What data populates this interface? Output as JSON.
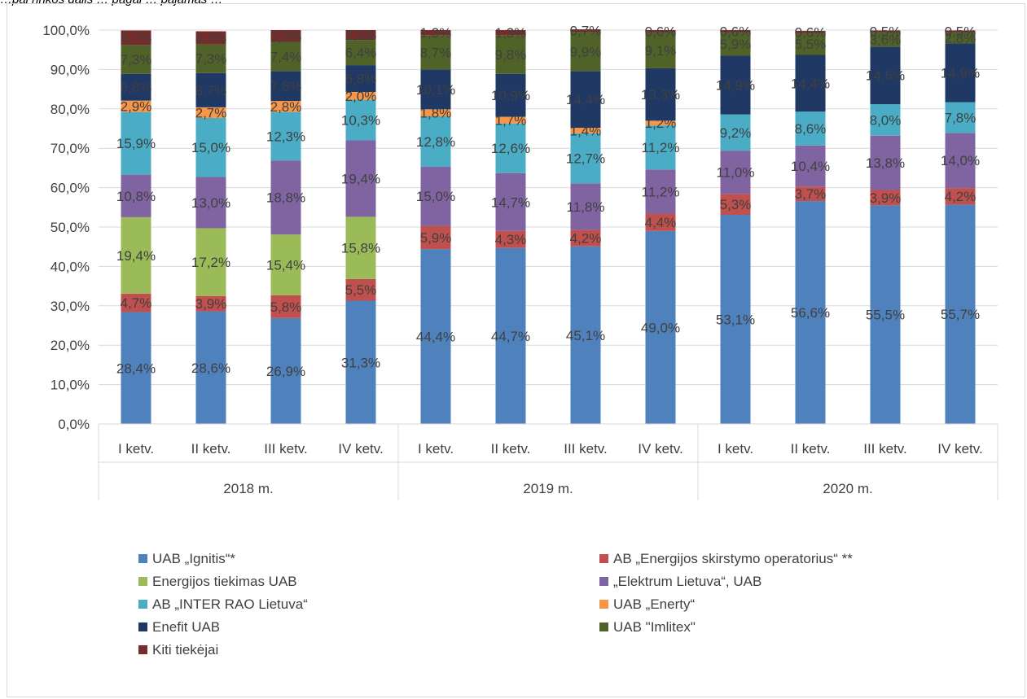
{
  "caption": "…pal rinkos dalis … pagal … pajamas …",
  "chart_data": {
    "type": "bar",
    "stacked": true,
    "ylim": [
      0,
      100
    ],
    "ytick_labels": [
      "0,0%",
      "10,0%",
      "20,0%",
      "30,0%",
      "40,0%",
      "50,0%",
      "60,0%",
      "70,0%",
      "80,0%",
      "90,0%",
      "100,0%"
    ],
    "categories": [
      "I ketv.",
      "II ketv.",
      "III ketv.",
      "IV ketv.",
      "I ketv.",
      "II ketv.",
      "III ketv.",
      "IV ketv.",
      "I ketv.",
      "II ketv.",
      "III ketv.",
      "IV ketv."
    ],
    "groups": [
      {
        "label": "2018 m.",
        "count": 4
      },
      {
        "label": "2019 m.",
        "count": 4
      },
      {
        "label": "2020 m.",
        "count": 4
      }
    ],
    "grid": true,
    "legend_position": "bottom",
    "series": [
      {
        "name": "UAB „Ignitis“*",
        "color": "#4f81bd",
        "values": [
          28.4,
          28.6,
          26.9,
          31.3,
          44.4,
          44.7,
          45.1,
          49.0,
          53.1,
          56.6,
          55.5,
          55.7
        ],
        "labels": [
          "28,4%",
          "28,6%",
          "26,9%",
          "31,3%",
          "44,4%",
          "44,7%",
          "45,1%",
          "49,0%",
          "53,1%",
          "56,6%",
          "55,5%",
          "55,7%"
        ]
      },
      {
        "name": "AB „Energijos skirstymo operatorius“ **",
        "color": "#c0504d",
        "values": [
          4.7,
          3.9,
          5.8,
          5.5,
          5.9,
          4.3,
          4.2,
          4.4,
          5.3,
          3.7,
          3.9,
          4.2
        ],
        "labels": [
          "4,7%",
          "3,9%",
          "5,8%",
          "5,5%",
          "5,9%",
          "4,3%",
          "4,2%",
          "4,4%",
          "5,3%",
          "3,7%",
          "3,9%",
          "4,2%"
        ]
      },
      {
        "name": "Energijos tiekimas UAB",
        "color": "#9bbb59",
        "values": [
          19.4,
          17.2,
          15.4,
          15.8,
          0,
          0,
          0,
          0,
          0,
          0,
          0,
          0
        ],
        "labels": [
          "19,4%",
          "17,2%",
          "15,4%",
          "15,8%",
          "",
          "",
          "",
          "",
          "",
          "",
          "",
          ""
        ]
      },
      {
        "name": "„Elektrum Lietuva“, UAB",
        "color": "#8064a2",
        "values": [
          10.8,
          13.0,
          18.8,
          19.4,
          15.0,
          14.7,
          11.8,
          11.2,
          11.0,
          10.4,
          13.8,
          14.0
        ],
        "labels": [
          "10,8%",
          "13,0%",
          "18,8%",
          "19,4%",
          "15,0%",
          "14,7%",
          "11,8%",
          "11,2%",
          "11,0%",
          "10,4%",
          "13,8%",
          "14,0%"
        ]
      },
      {
        "name": "AB „INTER RAO Lietuva“",
        "color": "#4bacc6",
        "values": [
          15.9,
          15.0,
          12.3,
          10.3,
          12.8,
          12.6,
          12.7,
          11.2,
          9.2,
          8.6,
          8.0,
          7.8
        ],
        "labels": [
          "15,9%",
          "15,0%",
          "12,3%",
          "10,3%",
          "12,8%",
          "12,6%",
          "12,7%",
          "11,2%",
          "9,2%",
          "8,6%",
          "8,0%",
          "7,8%"
        ]
      },
      {
        "name": "UAB „Enerty“",
        "color": "#f79646",
        "values": [
          2.9,
          2.7,
          2.8,
          2.0,
          1.8,
          1.7,
          1.4,
          1.2,
          0,
          0,
          0,
          0
        ],
        "labels": [
          "2,9%",
          "2,7%",
          "2,8%",
          "2,0%",
          "1,8%",
          "1,7%",
          "1,4%",
          "1,2%",
          "",
          "",
          "",
          ""
        ]
      },
      {
        "name": "Enefit UAB",
        "color": "#1f3864",
        "values": [
          6.8,
          8.7,
          7.6,
          6.8,
          10.1,
          10.9,
          14.4,
          13.3,
          14.9,
          14.4,
          14.6,
          14.9
        ],
        "labels": [
          "6,8%",
          "8,7%",
          "7,6%",
          "6,8%",
          "10,1%",
          "10,9%",
          "14,4%",
          "13,3%",
          "14,9%",
          "14,4%",
          "14,6%",
          "14,9%"
        ]
      },
      {
        "name": "UAB \"Imlitex\"",
        "color": "#4f6228",
        "values": [
          7.3,
          7.3,
          7.4,
          6.4,
          8.7,
          9.8,
          9.9,
          9.1,
          5.9,
          5.5,
          3.6,
          2.8
        ],
        "labels": [
          "7,3%",
          "7,3%",
          "7,4%",
          "6,4%",
          "8,7%",
          "9,8%",
          "9,9%",
          "9,1%",
          "5,9%",
          "5,5%",
          "3,6%",
          "2,8%"
        ]
      },
      {
        "name": "Kiti tiekėjai",
        "color": "#772c2a",
        "values": [
          3.7,
          3.3,
          3.0,
          2.5,
          1.3,
          1.3,
          0.7,
          0.6,
          0.6,
          0.6,
          0.5,
          0.5
        ],
        "labels": [
          "3,7%",
          "3,3%",
          "3,0%",
          "2,5%",
          "1,3%",
          "1,3%",
          "0,7%",
          "0,6%",
          "0,6%",
          "0,6%",
          "0,5%",
          "0,5%"
        ]
      }
    ]
  }
}
